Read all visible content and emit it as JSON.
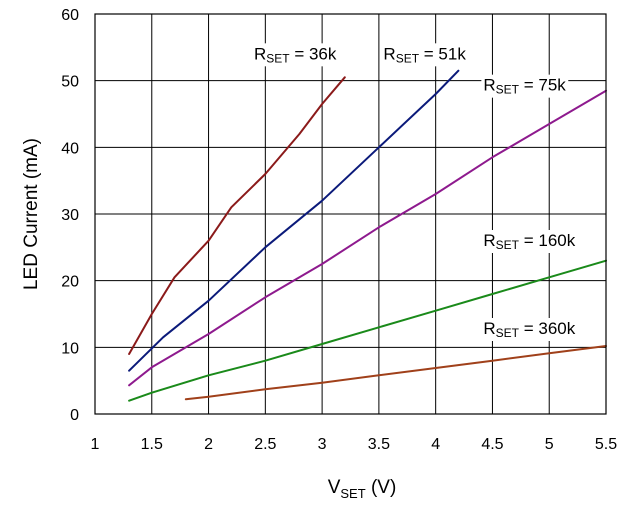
{
  "chart_data": {
    "type": "line",
    "xlabel": {
      "main": "V",
      "sub": "SET",
      "unit": " (V)"
    },
    "ylabel": "LED Current (mA)",
    "xlim": [
      1,
      5.5
    ],
    "ylim": [
      0,
      60
    ],
    "xticks": [
      "1",
      "1.5",
      "2",
      "2.5",
      "3",
      "3.5",
      "4",
      "4.5",
      "5",
      "5.5"
    ],
    "yticks": [
      "0",
      "10",
      "20",
      "30",
      "40",
      "50",
      "60"
    ],
    "grid": true,
    "series": [
      {
        "label_main": "R",
        "label_sub": "SET",
        "label_value": " = 36k",
        "label_anchor": {
          "x": 2.4,
          "y": 53.2
        },
        "color": "#8B1A1A",
        "x": [
          1.3,
          1.5,
          1.7,
          2.0,
          2.2,
          2.5,
          2.8,
          3.0,
          3.2
        ],
        "y": [
          9,
          15,
          20.5,
          26,
          31,
          36,
          42,
          46.5,
          50.5
        ]
      },
      {
        "label_main": "R",
        "label_sub": "SET",
        "label_value": " = 51k",
        "label_anchor": {
          "x": 3.54,
          "y": 53.2
        },
        "color": "#0B1A7A",
        "x": [
          1.3,
          1.6,
          2.0,
          2.5,
          3.0,
          3.5,
          4.0,
          4.2
        ],
        "y": [
          6.5,
          11.5,
          17,
          25,
          32,
          40,
          48,
          51.5
        ]
      },
      {
        "label_main": "R",
        "label_sub": "SET",
        "label_value": " = 75k",
        "label_anchor": {
          "x": 4.42,
          "y": 48.5
        },
        "color": "#8E1A8E",
        "x": [
          1.3,
          1.5,
          2.0,
          2.5,
          3.0,
          3.5,
          4.0,
          4.5,
          5.0,
          5.5
        ],
        "y": [
          4.3,
          7,
          12,
          17.5,
          22.5,
          28,
          33,
          38.5,
          43.5,
          48.5
        ]
      },
      {
        "label_main": "R",
        "label_sub": "SET",
        "label_value": " = 160k",
        "label_anchor": {
          "x": 4.42,
          "y": 25.2
        },
        "color": "#1A8A1A",
        "x": [
          1.3,
          1.5,
          2.0,
          2.5,
          3.0,
          3.5,
          4.0,
          4.5,
          5.0,
          5.5
        ],
        "y": [
          2,
          3.2,
          5.8,
          8,
          10.5,
          13,
          15.5,
          18,
          20.5,
          23
        ]
      },
      {
        "label_main": "R",
        "label_sub": "SET",
        "label_value": " = 360k",
        "label_anchor": {
          "x": 4.42,
          "y": 12
        },
        "color": "#A0401A",
        "x": [
          1.8,
          2.0,
          2.5,
          3.0,
          3.5,
          4.0,
          4.5,
          5.0,
          5.5
        ],
        "y": [
          2.2,
          2.6,
          3.7,
          4.7,
          5.8,
          6.9,
          8,
          9.1,
          10.2
        ]
      }
    ]
  }
}
